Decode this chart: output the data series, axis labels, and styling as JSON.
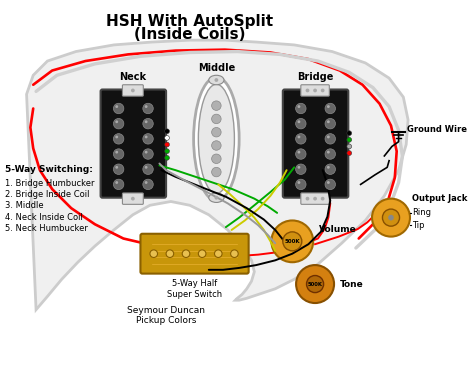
{
  "title_line1": "HSH With AutoSplit",
  "title_line2": "(Inside Coils)",
  "background_color": "#ffffff",
  "pickup_neck_label": "Neck",
  "pickup_middle_label": "Middle",
  "pickup_bridge_label": "Bridge",
  "switching_title": "5-Way Switching:",
  "switching_items": [
    "1. Bridge Humbucker",
    "2. Bridge Inside Coil",
    "3. Middle",
    "4. Neck Inside Coil",
    "5. Neck Humbucker"
  ],
  "bottom_left_label": "Seymour Duncan\nPickup Colors",
  "bottom_center_label": "5-Way Half\nSuper Switch",
  "volume_label": "Volume",
  "tone_label": "Tone",
  "output_jack_label": "Output Jack",
  "ground_wire_label": "Ground Wire",
  "ring_label": "Ring",
  "tip_label": "Tip",
  "pot_color": "#e8a020",
  "title_fontsize": 11,
  "label_fontsize": 7,
  "small_fontsize": 6
}
